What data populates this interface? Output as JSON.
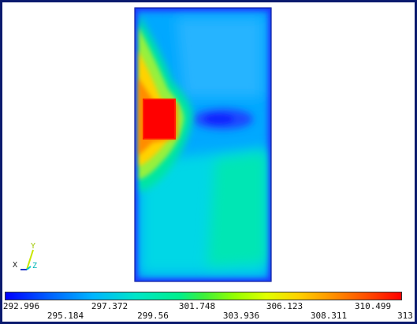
{
  "legend": {
    "labels_row1": [
      "292.996",
      "297.372",
      "301.748",
      "306.123",
      "310.499"
    ],
    "labels_row2": [
      "295.184",
      "299.56",
      "303.936",
      "308.311",
      "313"
    ]
  },
  "triad": {
    "x_label": "X",
    "y_label": "Y",
    "z_label": "Z"
  },
  "colors": {
    "frame": "#0a1a6e",
    "min": "#0000ff",
    "max": "#ff0000"
  }
}
